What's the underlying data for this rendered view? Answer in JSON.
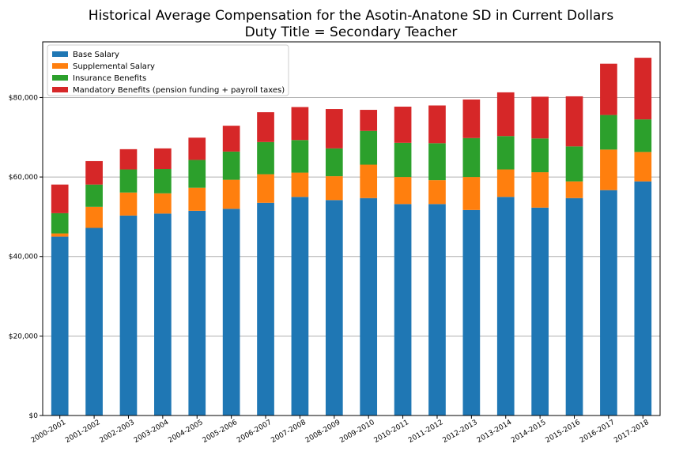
{
  "chart_data": {
    "type": "bar",
    "stacked": true,
    "title": "Historical Average Compensation for the Asotin-Anatone SD in Current Dollars",
    "subtitle": "Duty Title = Secondary Teacher",
    "xlabel": "",
    "ylabel": "",
    "ylim": [
      0,
      94000
    ],
    "yticks": [
      0,
      20000,
      40000,
      60000,
      80000
    ],
    "ytick_labels": [
      "$0",
      "$20,000",
      "$40,000",
      "$60,000",
      "$80,000"
    ],
    "grid": "horizontal",
    "legend_position": "top-left",
    "categories": [
      "2000-2001",
      "2001-2002",
      "2002-2003",
      "2003-2004",
      "2004-2005",
      "2005-2006",
      "2006-2007",
      "2007-2008",
      "2008-2009",
      "2009-2010",
      "2010-2011",
      "2011-2012",
      "2012-2013",
      "2013-2014",
      "2014-2015",
      "2015-2016",
      "2016-2017",
      "2017-2018"
    ],
    "series": [
      {
        "name": "Base Salary",
        "color": "#1f77b4",
        "values": [
          45000,
          47200,
          50300,
          50800,
          51500,
          52000,
          53500,
          55000,
          54200,
          54700,
          53200,
          53200,
          51700,
          55000,
          52300,
          54700,
          56700,
          58900
        ]
      },
      {
        "name": "Supplemental Salary",
        "color": "#ff7f0e",
        "values": [
          800,
          5300,
          5800,
          5100,
          5800,
          7300,
          7200,
          6100,
          6000,
          8400,
          6800,
          6000,
          8300,
          6900,
          8900,
          4200,
          10200,
          7400
        ]
      },
      {
        "name": "Insurance Benefits",
        "color": "#2ca02c",
        "values": [
          5100,
          5600,
          5800,
          6100,
          7000,
          7100,
          8100,
          8200,
          7000,
          8500,
          8600,
          9300,
          9800,
          8400,
          8500,
          8800,
          8700,
          8200
        ]
      },
      {
        "name": "Mandatory Benefits (pension funding + payroll taxes)",
        "color": "#d62728",
        "values": [
          7200,
          5900,
          5100,
          5200,
          5600,
          6500,
          7500,
          8300,
          9900,
          5300,
          9100,
          9500,
          9700,
          11000,
          10500,
          12600,
          12900,
          15500
        ]
      }
    ]
  }
}
